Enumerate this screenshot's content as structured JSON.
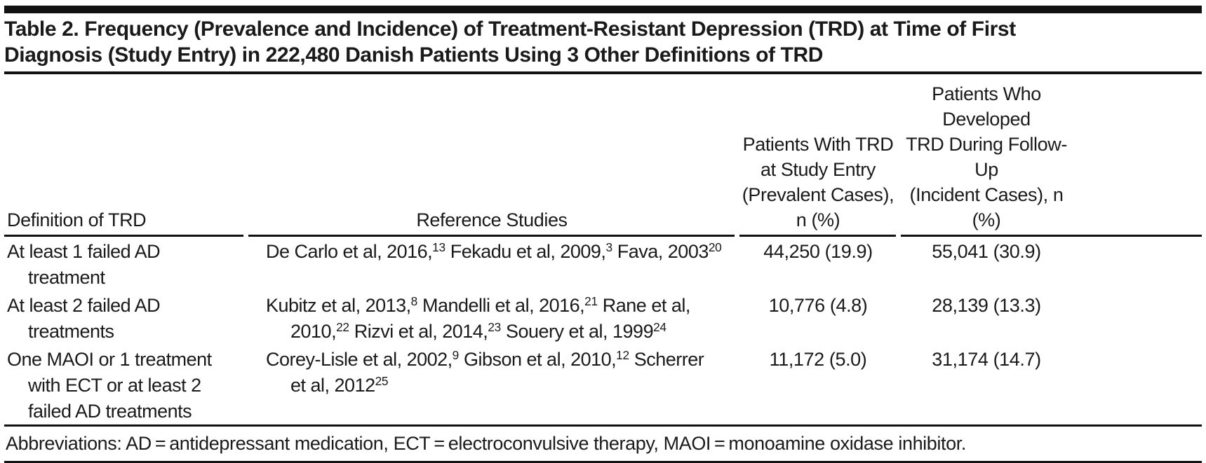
{
  "title": {
    "lines": [
      "Table 2. Frequency (Prevalence and Incidence) of Treatment-Resistant Depression (TRD) at Time of First",
      "Diagnosis (Study Entry) in 222,480 Danish Patients Using 3 Other Definitions of TRD"
    ]
  },
  "table": {
    "columns": {
      "definition": "Definition of TRD",
      "references": "Reference Studies",
      "prevalent_lines": [
        "Patients With TRD",
        "at Study Entry",
        "(Prevalent Cases),",
        "n (%)"
      ],
      "incident_lines": [
        "Patients Who Developed",
        "TRD During Follow-Up",
        "(Incident Cases), n (%)"
      ]
    },
    "rows": [
      {
        "definition_lines": [
          "At least 1 failed AD",
          "treatment"
        ],
        "reference_lines": [
          [
            [
              "De Carlo et al, 2016,",
              "13"
            ],
            [
              "Fekadu et al, 2009,",
              "3"
            ],
            [
              "Fava, 2003",
              "20"
            ]
          ]
        ],
        "prevalent": "44,250 (19.9)",
        "incident": "55,041 (30.9)"
      },
      {
        "definition_lines": [
          "At least 2 failed AD",
          "treatments"
        ],
        "reference_lines": [
          [
            [
              "Kubitz et al, 2013,",
              "8"
            ],
            [
              "Mandelli et al, 2016,",
              "21"
            ],
            [
              "Rane et al,",
              ""
            ]
          ],
          [
            [
              "2010,",
              "22"
            ],
            [
              "Rizvi et al, 2014,",
              "23"
            ],
            [
              "Souery et al, 1999",
              "24"
            ]
          ]
        ],
        "prevalent": "10,776 (4.8)",
        "incident": "28,139 (13.3)"
      },
      {
        "definition_lines": [
          "One MAOI or 1 treatment",
          "with ECT or at least 2",
          "failed AD treatments"
        ],
        "reference_lines": [
          [
            [
              "Corey-Lisle et al, 2002,",
              "9"
            ],
            [
              "Gibson et al, 2010,",
              "12"
            ],
            [
              "Scherrer",
              ""
            ]
          ],
          [
            [
              "et al, 2012",
              "25"
            ]
          ]
        ],
        "prevalent": "11,172 (5.0)",
        "incident": "31,174 (14.7)"
      }
    ]
  },
  "footnote": "Abbreviations: AD = antidepressant medication, ECT = electroconvulsive therapy, MAOI = monoamine oxidase inhibitor."
}
